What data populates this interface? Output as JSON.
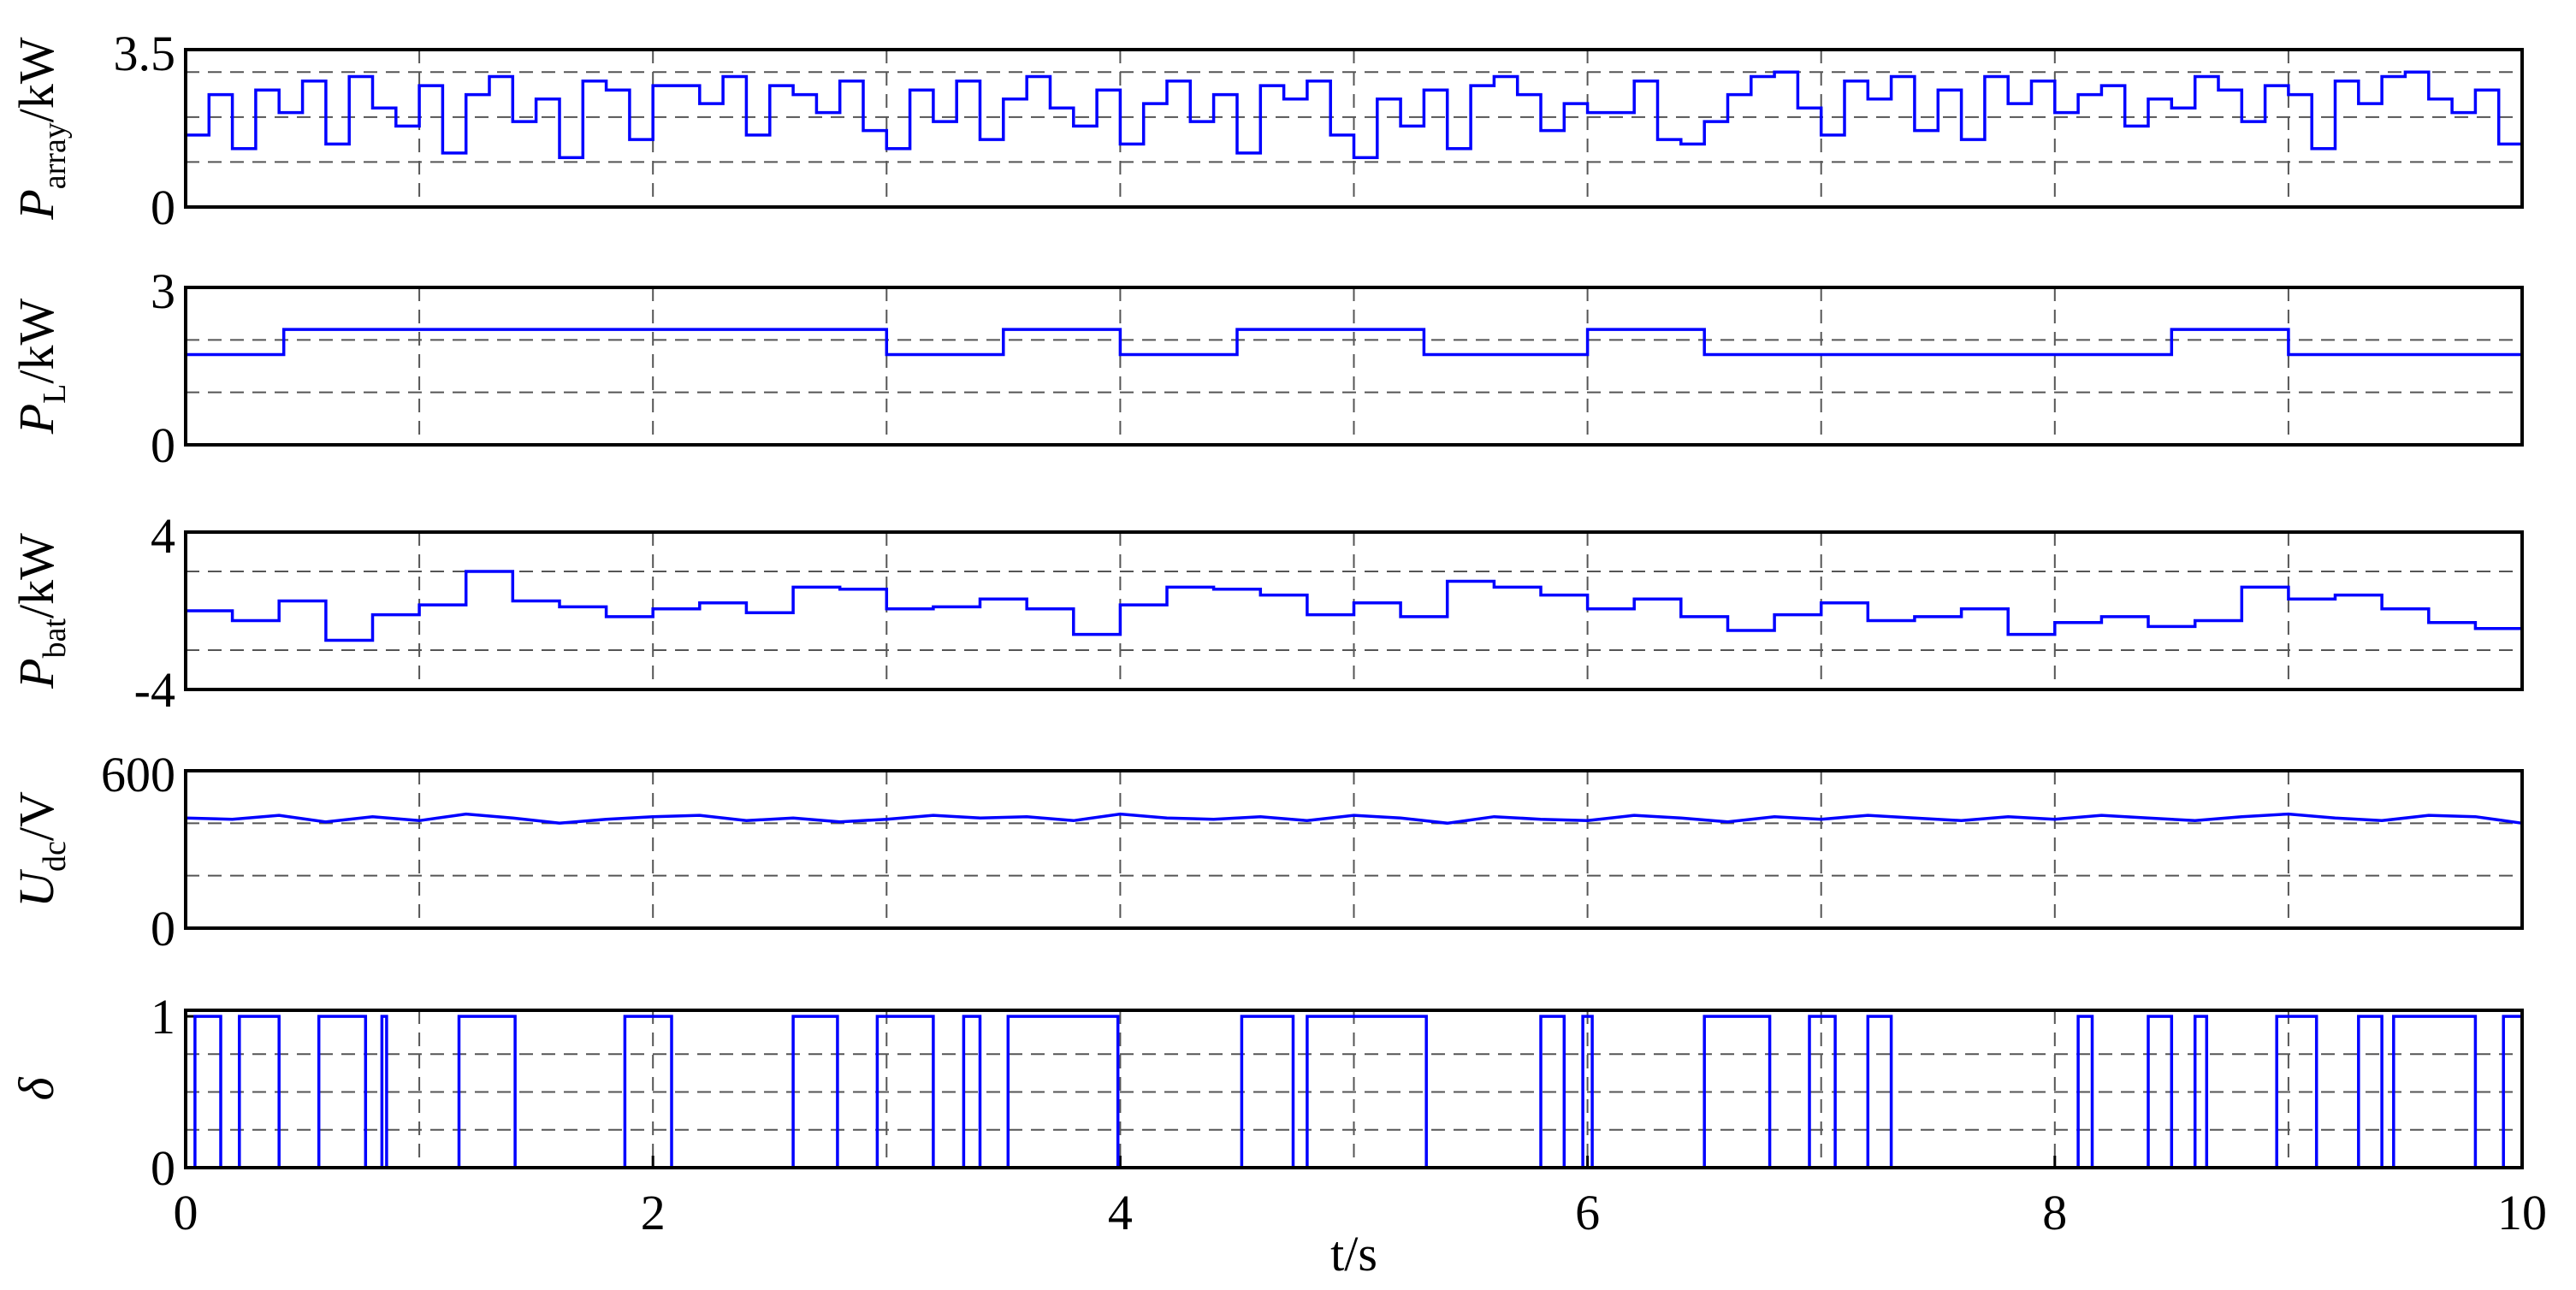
{
  "chart_data": [
    {
      "type": "line",
      "step": true,
      "color": "#0000ff",
      "y_label": {
        "symbol": "P",
        "subscript": "array",
        "unit": "/kW"
      },
      "xlim": [
        0,
        10
      ],
      "xgrid": [
        1,
        2,
        3,
        4,
        5,
        6,
        7,
        8,
        9
      ],
      "ylim": [
        0,
        3.5
      ],
      "yticks": [
        0,
        3.5
      ],
      "grid_y": [
        1,
        2,
        3
      ],
      "x": [
        0,
        0.1,
        0.2,
        0.3,
        0.4,
        0.5,
        0.6,
        0.7,
        0.8,
        0.9,
        1,
        1.1,
        1.2,
        1.3,
        1.4,
        1.5,
        1.6,
        1.7,
        1.8,
        1.9,
        2,
        2.1,
        2.2,
        2.3,
        2.4,
        2.5,
        2.6,
        2.7,
        2.8,
        2.9,
        3,
        3.1,
        3.2,
        3.3,
        3.4,
        3.5,
        3.6,
        3.7,
        3.8,
        3.9,
        4,
        4.1,
        4.2,
        4.3,
        4.4,
        4.5,
        4.6,
        4.7,
        4.8,
        4.9,
        5,
        5.1,
        5.2,
        5.3,
        5.4,
        5.5,
        5.6,
        5.7,
        5.8,
        5.9,
        6,
        6.1,
        6.2,
        6.3,
        6.4,
        6.5,
        6.6,
        6.7,
        6.8,
        6.9,
        7,
        7.1,
        7.2,
        7.3,
        7.4,
        7.5,
        7.6,
        7.7,
        7.8,
        7.9,
        8,
        8.1,
        8.2,
        8.3,
        8.4,
        8.5,
        8.6,
        8.7,
        8.8,
        8.9,
        9,
        9.1,
        9.2,
        9.3,
        9.4,
        9.5,
        9.6,
        9.7,
        9.8,
        9.9,
        10
      ],
      "values": [
        1.6,
        2.5,
        1.3,
        2.6,
        2.1,
        2.8,
        1.4,
        2.9,
        2.2,
        1.8,
        2.7,
        1.2,
        2.5,
        2.9,
        1.9,
        2.4,
        1.1,
        2.8,
        2.6,
        1.5,
        2.7,
        2.7,
        2.3,
        2.9,
        1.6,
        2.7,
        2.5,
        2.1,
        2.8,
        1.7,
        1.3,
        2.6,
        1.9,
        2.8,
        1.5,
        2.4,
        2.9,
        2.2,
        1.8,
        2.6,
        1.4,
        2.3,
        2.8,
        1.9,
        2.5,
        1.2,
        2.7,
        2.4,
        2.8,
        1.6,
        1.1,
        2.4,
        1.8,
        2.6,
        1.3,
        2.7,
        2.9,
        2.5,
        1.7,
        2.3,
        2.1,
        2.1,
        2.8,
        1.5,
        1.4,
        1.9,
        2.5,
        2.9,
        3.0,
        2.2,
        1.6,
        2.8,
        2.4,
        2.9,
        1.7,
        2.6,
        1.5,
        2.9,
        2.3,
        2.8,
        2.1,
        2.5,
        2.7,
        1.8,
        2.4,
        2.2,
        2.9,
        2.6,
        1.9,
        2.7,
        2.5,
        1.3,
        2.8,
        2.3,
        2.9,
        3.0,
        2.4,
        2.1,
        2.6,
        1.4,
        1.4
      ]
    },
    {
      "type": "line",
      "step": true,
      "color": "#0000ff",
      "y_label": {
        "symbol": "P",
        "subscript": "L",
        "unit": "/kW"
      },
      "xlim": [
        0,
        10
      ],
      "xgrid": [
        1,
        2,
        3,
        4,
        5,
        6,
        7,
        8,
        9
      ],
      "ylim": [
        0,
        3
      ],
      "yticks": [
        0,
        3
      ],
      "grid_y": [
        1,
        2
      ],
      "x": [
        0,
        0.42,
        3,
        3.5,
        4,
        4.5,
        5.3,
        6,
        6.5,
        8.5,
        9,
        10
      ],
      "values": [
        1.72,
        2.2,
        1.72,
        2.2,
        1.72,
        2.2,
        1.72,
        2.2,
        1.72,
        2.2,
        1.72,
        1.72
      ]
    },
    {
      "type": "line",
      "step": true,
      "color": "#0000ff",
      "y_label": {
        "symbol": "P",
        "subscript": "bat",
        "unit": "/kW"
      },
      "xlim": [
        0,
        10
      ],
      "xgrid": [
        1,
        2,
        3,
        4,
        5,
        6,
        7,
        8,
        9
      ],
      "ylim": [
        -4,
        4
      ],
      "yticks": [
        -4,
        4
      ],
      "grid_y": [
        -2,
        2
      ],
      "x": [
        0,
        0.2,
        0.4,
        0.6,
        0.8,
        1,
        1.2,
        1.4,
        1.6,
        1.8,
        2,
        2.2,
        2.4,
        2.6,
        2.8,
        3,
        3.2,
        3.4,
        3.6,
        3.8,
        4,
        4.2,
        4.4,
        4.6,
        4.8,
        5,
        5.2,
        5.4,
        5.6,
        5.8,
        6,
        6.2,
        6.4,
        6.6,
        6.8,
        7,
        7.2,
        7.4,
        7.6,
        7.8,
        8,
        8.2,
        8.4,
        8.6,
        8.8,
        9,
        9.2,
        9.4,
        9.6,
        9.8,
        10
      ],
      "values": [
        0,
        -0.5,
        0.5,
        -1.5,
        -0.2,
        0.3,
        2.0,
        0.5,
        0.2,
        -0.3,
        0.1,
        0.4,
        -0.1,
        1.2,
        1.1,
        0.1,
        0.2,
        0.6,
        0.1,
        -1.2,
        0.3,
        1.2,
        1.1,
        0.8,
        -0.2,
        0.4,
        -0.3,
        1.5,
        1.2,
        0.8,
        0.1,
        0.6,
        -0.3,
        -1.0,
        -0.2,
        0.4,
        -0.5,
        -0.3,
        0.1,
        -1.2,
        -0.6,
        -0.3,
        -0.8,
        -0.5,
        1.2,
        0.6,
        0.8,
        0.1,
        -0.6,
        -0.9,
        0.3
      ]
    },
    {
      "type": "line",
      "step": false,
      "color": "#0000ff",
      "y_label": {
        "symbol": "U",
        "subscript": "dc",
        "unit": "/V"
      },
      "xlim": [
        0,
        10
      ],
      "xgrid": [
        1,
        2,
        3,
        4,
        5,
        6,
        7,
        8,
        9
      ],
      "ylim": [
        0,
        600
      ],
      "yticks": [
        0,
        600
      ],
      "grid_y": [
        200,
        400
      ],
      "x": [
        0,
        0.2,
        0.4,
        0.6,
        0.8,
        1,
        1.2,
        1.4,
        1.6,
        1.8,
        2,
        2.2,
        2.4,
        2.6,
        2.8,
        3,
        3.2,
        3.4,
        3.6,
        3.8,
        4,
        4.2,
        4.4,
        4.6,
        4.8,
        5,
        5.2,
        5.4,
        5.6,
        5.8,
        6,
        6.2,
        6.4,
        6.6,
        6.8,
        7,
        7.2,
        7.4,
        7.6,
        7.8,
        8,
        8.2,
        8.4,
        8.6,
        8.8,
        9,
        9.2,
        9.4,
        9.6,
        9.8,
        10
      ],
      "values": [
        420,
        415,
        430,
        405,
        425,
        410,
        435,
        420,
        400,
        415,
        425,
        430,
        410,
        420,
        405,
        415,
        430,
        420,
        425,
        410,
        435,
        420,
        415,
        425,
        410,
        430,
        420,
        400,
        425,
        415,
        410,
        430,
        420,
        405,
        425,
        415,
        430,
        420,
        410,
        425,
        415,
        430,
        420,
        410,
        425,
        435,
        420,
        410,
        430,
        425,
        400
      ]
    },
    {
      "type": "line",
      "step": true,
      "color": "#0000ff",
      "y_label": {
        "symbol": "δ"
      },
      "x_label": "t/s",
      "xlim": [
        0,
        10
      ],
      "xticks": [
        0,
        2,
        4,
        6,
        8,
        10
      ],
      "xgrid": [
        1,
        2,
        3,
        4,
        5,
        6,
        7,
        8,
        9
      ],
      "ylim": [
        0,
        1.04
      ],
      "yticks": [
        0,
        1
      ],
      "grid_y": [
        0.25,
        0.5,
        0.75
      ],
      "x": [
        0,
        0.04,
        0.15,
        0.23,
        0.4,
        0.57,
        0.77,
        0.84,
        0.86,
        1.17,
        1.41,
        1.88,
        2.08,
        2.6,
        2.79,
        2.96,
        3.2,
        3.33,
        3.4,
        3.52,
        3.99,
        4.52,
        4.74,
        4.8,
        5.31,
        5.8,
        5.9,
        5.98,
        6.02,
        6.5,
        6.78,
        6.95,
        7.06,
        7.2,
        7.3,
        8.1,
        8.16,
        8.4,
        8.5,
        8.6,
        8.65,
        8.95,
        9.12,
        9.3,
        9.4,
        9.45,
        9.8,
        9.92,
        10
      ],
      "values": [
        0,
        1,
        0,
        1,
        0,
        1,
        0,
        1,
        0,
        1,
        0,
        1,
        0,
        1,
        0,
        1,
        0,
        1,
        0,
        1,
        0,
        1,
        0,
        1,
        0,
        1,
        0,
        1,
        0,
        1,
        0,
        1,
        0,
        1,
        0,
        1,
        0,
        1,
        0,
        1,
        0,
        1,
        0,
        1,
        0,
        1,
        0,
        1,
        1
      ]
    }
  ]
}
